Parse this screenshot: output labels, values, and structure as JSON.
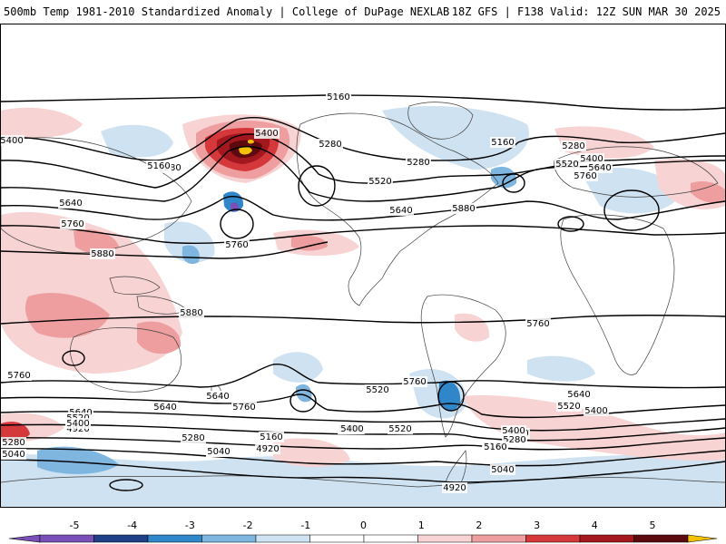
{
  "header": {
    "left": "500mb Temp 1981-2010 Standardized Anomaly | College of DuPage NEXLAB",
    "right": "18Z GFS | F138 Valid: 12Z SUN MAR 30 2025"
  },
  "colors": {
    "neg5": "#7a4fb8",
    "neg4": "#1f3f86",
    "neg3": "#2f86c9",
    "neg2": "#7fb6e0",
    "neg1": "#cfe2f1",
    "zero": "#ffffff",
    "pos1": "#f7d3d3",
    "pos2": "#ee9e9e",
    "pos3": "#d5383a",
    "pos4": "#a3171e",
    "pos5": "#5c0a0e",
    "extreme": "#f2c200"
  },
  "colorbar": {
    "ticks": [
      "-5",
      "-4",
      "-3",
      "-2",
      "-1",
      "0",
      "1",
      "2",
      "3",
      "4",
      "5"
    ]
  },
  "contour_labels": [
    "5160",
    "5400",
    "5280",
    "5400",
    "5280",
    "5160",
    "5280",
    "5520",
    "5640",
    "5160",
    "5280",
    "5400",
    "5520",
    "5640",
    "5760",
    "5640",
    "5760",
    "5880",
    "5760",
    "5880",
    "5880",
    "5760",
    "5760",
    "5640",
    "5520",
    "5640",
    "5760",
    "5760",
    "5640",
    "5520",
    "5400",
    "5280",
    "5160",
    "5040",
    "4920",
    "5400",
    "5280",
    "5160",
    "5040",
    "4920",
    "5400",
    "5520",
    "5400",
    "5280",
    "5160",
    "5040",
    "4920",
    "5280",
    "5040",
    "5640",
    "5520",
    "5400"
  ]
}
